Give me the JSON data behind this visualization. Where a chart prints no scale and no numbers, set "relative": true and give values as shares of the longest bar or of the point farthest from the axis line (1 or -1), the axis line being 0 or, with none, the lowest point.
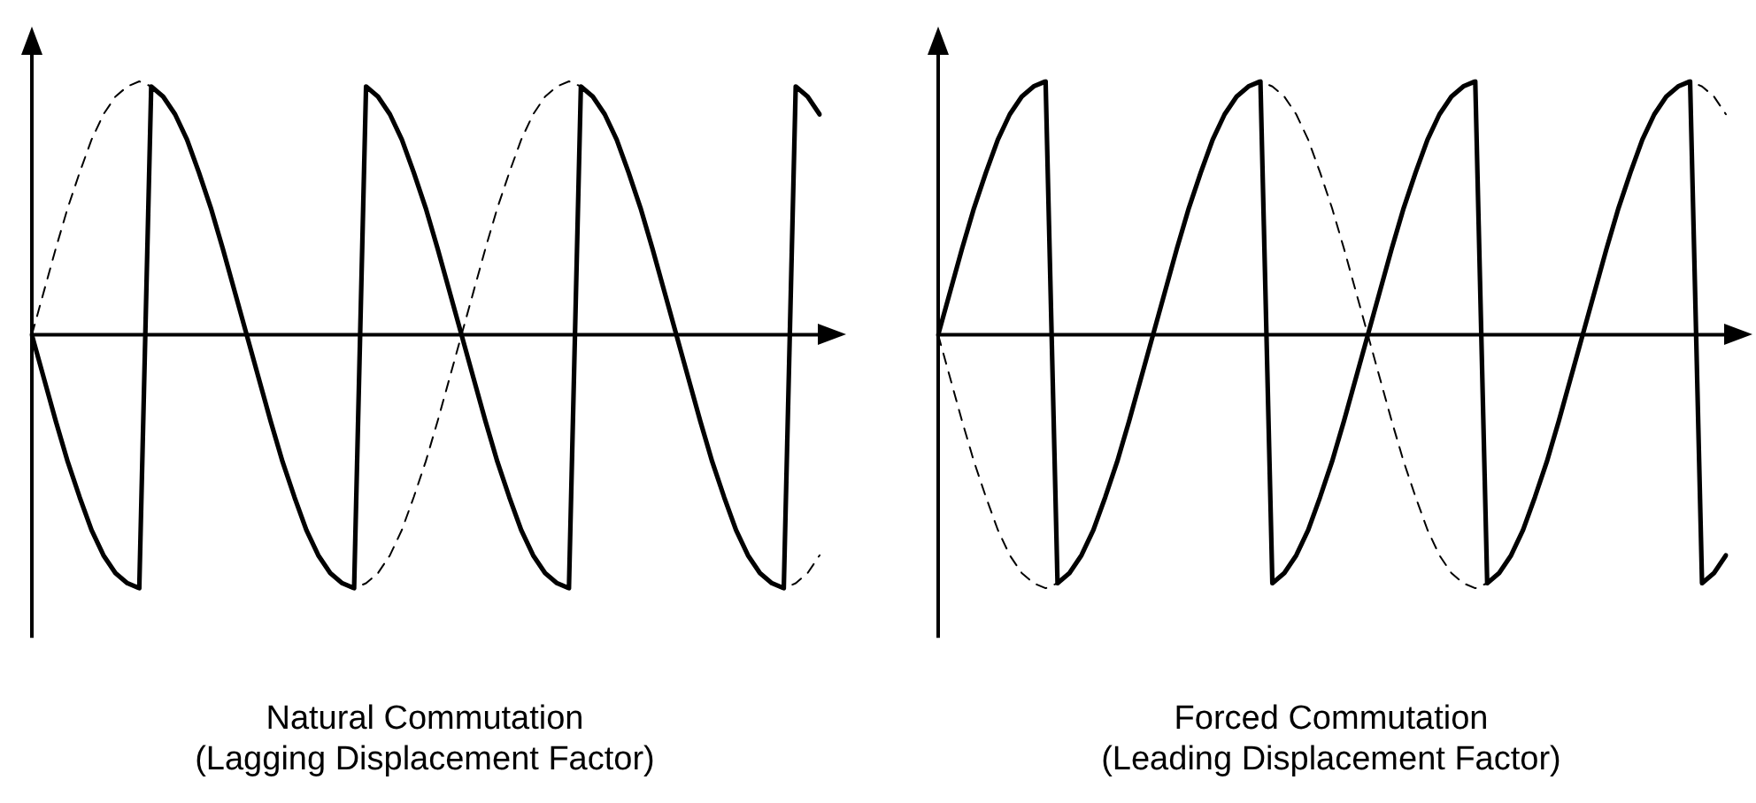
{
  "chart_data": [
    {
      "type": "line",
      "title": "Natural Commutation",
      "subtitle": "(Lagging Displacement Factor)",
      "relative": true,
      "marker": "none",
      "categories": [
        null,
        null,
        null,
        null,
        null,
        null,
        null,
        null,
        null,
        null,
        null,
        null,
        null,
        null,
        null,
        null,
        null,
        null,
        null,
        null,
        null,
        null,
        null,
        null,
        null,
        null,
        null,
        null,
        null,
        null,
        null,
        null,
        null,
        null,
        null,
        null,
        null,
        null,
        null,
        null,
        null,
        null,
        null,
        null,
        null,
        null,
        null,
        null,
        null,
        null,
        null,
        null,
        null,
        null,
        null,
        null,
        null,
        null,
        null,
        null,
        null,
        null,
        null,
        null,
        null,
        null,
        null
      ],
      "series": [
        {
          "color": "#000000",
          "line_style": "dashed",
          "values": [
            0,
            0.17,
            0.34,
            0.5,
            0.64,
            0.77,
            0.87,
            0.94,
            0.98,
            1,
            0.98,
            0.94,
            0.87,
            0.77,
            0.64,
            0.5,
            0.34,
            0.17,
            0,
            -0.17,
            -0.34,
            -0.5,
            -0.64,
            -0.77,
            -0.87,
            -0.94,
            -0.98,
            -1,
            -0.98,
            -0.94,
            -0.87,
            -0.77,
            -0.64,
            -0.5,
            -0.34,
            -0.17,
            0,
            0.17,
            0.34,
            0.5,
            0.64,
            0.77,
            0.87,
            0.94,
            0.98,
            1,
            0.98,
            0.94,
            0.87,
            0.77,
            0.64,
            0.5,
            0.34,
            0.17,
            0,
            -0.17,
            -0.34,
            -0.5,
            -0.64,
            -0.77,
            -0.87,
            -0.94,
            -0.98,
            -1,
            -0.98,
            -0.94,
            -0.87
          ]
        },
        {
          "color": "#000000",
          "line_style": "solid",
          "values": [
            0,
            -0.17,
            -0.34,
            -0.5,
            -0.64,
            -0.77,
            -0.87,
            -0.94,
            -0.98,
            -1,
            0.98,
            0.94,
            0.87,
            0.77,
            0.64,
            0.5,
            0.34,
            0.17,
            0,
            -0.17,
            -0.34,
            -0.5,
            -0.64,
            -0.77,
            -0.87,
            -0.94,
            -0.98,
            -1,
            0.98,
            0.94,
            0.87,
            0.77,
            0.64,
            0.5,
            0.34,
            0.17,
            0,
            -0.17,
            -0.34,
            -0.5,
            -0.64,
            -0.77,
            -0.87,
            -0.94,
            -0.98,
            -1,
            0.98,
            0.94,
            0.87,
            0.77,
            0.64,
            0.5,
            0.34,
            0.17,
            0,
            -0.17,
            -0.34,
            -0.5,
            -0.64,
            -0.77,
            -0.87,
            -0.94,
            -0.98,
            -1,
            0.98,
            0.94,
            0.87
          ]
        }
      ]
    },
    {
      "type": "line",
      "title": "Forced Commutation",
      "subtitle": "(Leading Displacement Factor)",
      "relative": true,
      "marker": "none",
      "categories": [
        null,
        null,
        null,
        null,
        null,
        null,
        null,
        null,
        null,
        null,
        null,
        null,
        null,
        null,
        null,
        null,
        null,
        null,
        null,
        null,
        null,
        null,
        null,
        null,
        null,
        null,
        null,
        null,
        null,
        null,
        null,
        null,
        null,
        null,
        null,
        null,
        null,
        null,
        null,
        null,
        null,
        null,
        null,
        null,
        null,
        null,
        null,
        null,
        null,
        null,
        null,
        null,
        null,
        null,
        null,
        null,
        null,
        null,
        null,
        null,
        null,
        null,
        null,
        null,
        null,
        null,
        null
      ],
      "series": [
        {
          "color": "#000000",
          "line_style": "dashed",
          "values": [
            0,
            -0.17,
            -0.34,
            -0.5,
            -0.64,
            -0.77,
            -0.87,
            -0.94,
            -0.98,
            -1,
            -0.98,
            -0.94,
            -0.87,
            -0.77,
            -0.64,
            -0.5,
            -0.34,
            -0.17,
            0,
            0.17,
            0.34,
            0.5,
            0.64,
            0.77,
            0.87,
            0.94,
            0.98,
            1,
            0.98,
            0.94,
            0.87,
            0.77,
            0.64,
            0.5,
            0.34,
            0.17,
            0,
            -0.17,
            -0.34,
            -0.5,
            -0.64,
            -0.77,
            -0.87,
            -0.94,
            -0.98,
            -1,
            -0.98,
            -0.94,
            -0.87,
            -0.77,
            -0.64,
            -0.5,
            -0.34,
            -0.17,
            0,
            0.17,
            0.34,
            0.5,
            0.64,
            0.77,
            0.87,
            0.94,
            0.98,
            1,
            0.98,
            0.94,
            0.87
          ]
        },
        {
          "color": "#000000",
          "line_style": "solid",
          "values": [
            0,
            0.17,
            0.34,
            0.5,
            0.64,
            0.77,
            0.87,
            0.94,
            0.98,
            1,
            -0.98,
            -0.94,
            -0.87,
            -0.77,
            -0.64,
            -0.5,
            -0.34,
            -0.17,
            0,
            0.17,
            0.34,
            0.5,
            0.64,
            0.77,
            0.87,
            0.94,
            0.98,
            1,
            -0.98,
            -0.94,
            -0.87,
            -0.77,
            -0.64,
            -0.5,
            -0.34,
            -0.17,
            0,
            0.17,
            0.34,
            0.5,
            0.64,
            0.77,
            0.87,
            0.94,
            0.98,
            1,
            -0.98,
            -0.94,
            -0.87,
            -0.77,
            -0.64,
            -0.5,
            -0.34,
            -0.17,
            0,
            0.17,
            0.34,
            0.5,
            0.64,
            0.77,
            0.87,
            0.94,
            0.98,
            1,
            -0.98,
            -0.94,
            -0.87
          ]
        }
      ]
    }
  ]
}
